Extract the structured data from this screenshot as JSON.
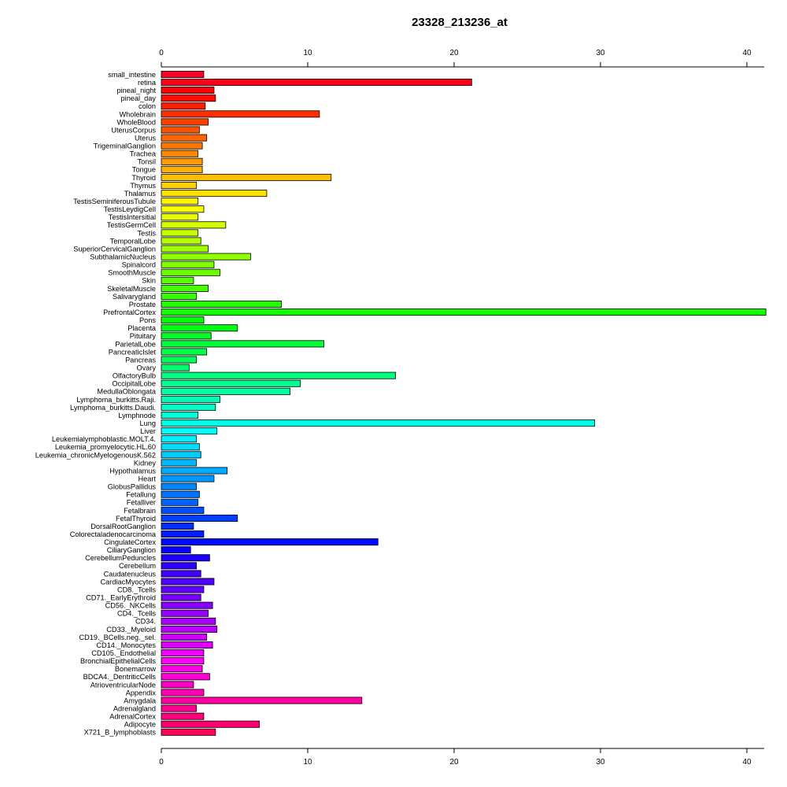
{
  "chart_data": {
    "type": "bar",
    "orientation": "horizontal",
    "title": "23328_213236_at",
    "xlabel": "",
    "ylabel": "",
    "xlim": [
      0,
      41.3
    ],
    "ticks": [
      0,
      10,
      20,
      30,
      40
    ],
    "grid": false,
    "categories": [
      "small_intestine",
      "retina",
      "pineal_night",
      "pineal_day",
      "colon",
      "Wholebrain",
      "WholeBlood",
      "UterusCorpus",
      "Uterus",
      "TrigeminalGanglion",
      "Trachea",
      "Tonsil",
      "Tongue",
      "Thyroid",
      "Thymus",
      "Thalamus",
      "TestisSeminiferousTubule",
      "TestisLeydigCell",
      "TestisIntersitial",
      "TestisGermCell",
      "Testis",
      "TemporalLobe",
      "SuperiorCervicalGanglion",
      "SubthalamicNucleus",
      "Spinalcord",
      "SmoothMuscle",
      "Skin",
      "SkeletalMuscle",
      "Salivarygland",
      "Prostate",
      "PrefrontalCortex",
      "Pons",
      "Placenta",
      "Pituitary",
      "ParietalLobe",
      "PancreaticIslet",
      "Pancreas",
      "Ovary",
      "OlfactoryBulb",
      "OccipitalLobe",
      "MedullaOblongata",
      "Lymphoma_burkitts.Raji.",
      "Lymphoma_burkitts.Daudi.",
      "Lymphnode",
      "Lung",
      "Liver",
      "Leukemialymphoblastic.MOLT.4.",
      "Leukemia_promyelocytic.HL.60",
      "Leukemia_chronicMyelogenousK.562",
      "Kidney",
      "Hypothalamus",
      "Heart",
      "GlobusPallidus",
      "Fetallung",
      "Fetalliver",
      "Fetalbrain",
      "FetalThyroid",
      "DorsalRootGanglion",
      "Colorectaladenocarcinoma",
      "CingulateCortex",
      "CiliaryGanglion",
      "CerebellumPeduncles",
      "Cerebellum",
      "Caudatenucleus",
      "CardiacMyocytes",
      "CD8._Tcells",
      "CD71._EarlyErythroid",
      "CD56._NKCells",
      "CD4._Tcells",
      "CD34.",
      "CD33._Myeloid",
      "CD19._BCells.neg._sel.",
      "CD14._Monocytes",
      "CD105._Endothelial",
      "BronchialEpithelialCells",
      "Bonemarrow",
      "BDCA4._DentriticCells",
      "AtrioventricularNode",
      "Appendix",
      "Amygdala",
      "Adrenalgland",
      "AdrenalCortex",
      "Adipocyte",
      "X721_B_lymphoblasts"
    ],
    "values": [
      2.9,
      21.2,
      3.6,
      3.7,
      3.0,
      10.8,
      3.2,
      2.6,
      3.1,
      2.8,
      2.5,
      2.8,
      2.8,
      11.6,
      2.4,
      7.2,
      2.5,
      2.9,
      2.5,
      4.4,
      2.5,
      2.7,
      3.2,
      6.1,
      3.6,
      4.0,
      2.2,
      3.2,
      2.4,
      8.2,
      41.3,
      2.9,
      5.2,
      3.4,
      11.1,
      3.1,
      2.4,
      1.9,
      16.0,
      9.5,
      8.8,
      4.0,
      3.7,
      2.5,
      29.6,
      3.8,
      2.4,
      2.6,
      2.7,
      2.4,
      4.5,
      3.6,
      2.4,
      2.6,
      2.5,
      2.9,
      5.2,
      2.2,
      2.9,
      14.8,
      2.0,
      3.3,
      2.4,
      2.7,
      3.6,
      2.9,
      2.7,
      3.5,
      3.2,
      3.7,
      3.8,
      3.1,
      3.5,
      2.9,
      2.9,
      2.8,
      3.3,
      2.2,
      2.9,
      13.7,
      2.4,
      2.9,
      6.7,
      3.7
    ]
  }
}
